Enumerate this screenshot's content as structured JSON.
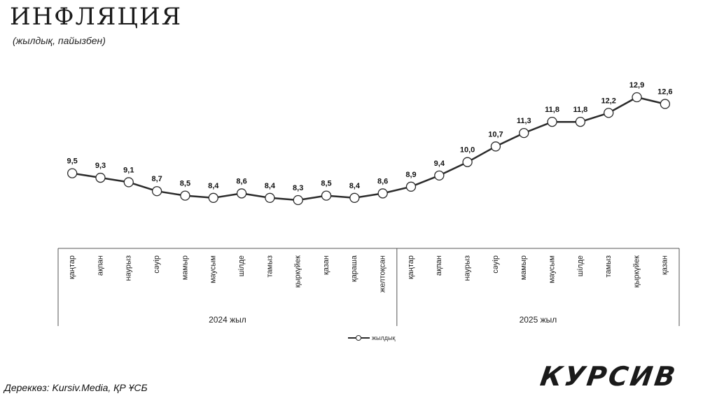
{
  "header": {
    "title": "ИНФЛЯЦИЯ",
    "subtitle": "(жылдық, пайызбен)"
  },
  "footer": {
    "source": "Дереккөз: Kursiv.Media, ҚР ҰСБ",
    "brand": "КУРСИВ"
  },
  "colors": {
    "line": "#2b2b2b",
    "marker_fill": "#ffffff",
    "axis": "#555555"
  },
  "chart_data": {
    "type": "line",
    "title": "ИНФЛЯЦИЯ",
    "subtitle": "(жылдық, пайызбен)",
    "categories": [
      "қаңтар",
      "ақпан",
      "наурыз",
      "сәуір",
      "мамыр",
      "маусым",
      "шілде",
      "тамыз",
      "қыркүйек",
      "қазан",
      "қараша",
      "желтоқсан",
      "қаңтар",
      "ақпан",
      "наурыз",
      "сәуір",
      "мамыр",
      "маусым",
      "шілде",
      "тамыз",
      "қыркүйек",
      "қазан"
    ],
    "groups": [
      {
        "label": "2024 жыл",
        "count": 12
      },
      {
        "label": "2025 жыл",
        "count": 10
      }
    ],
    "series": [
      {
        "name": "жылдық",
        "values": [
          9.5,
          9.3,
          9.1,
          8.7,
          8.5,
          8.4,
          8.6,
          8.4,
          8.3,
          8.5,
          8.4,
          8.6,
          8.9,
          9.4,
          10.0,
          10.7,
          11.3,
          11.8,
          11.8,
          12.2,
          12.9,
          12.6
        ],
        "labels": [
          "9,5",
          "9,3",
          "9,1",
          "8,7",
          "8,5",
          "8,4",
          "8,6",
          "8,4",
          "8,3",
          "8,5",
          "8,4",
          "8,6",
          "8,9",
          "9,4",
          "10,0",
          "10,7",
          "11,3",
          "11,8",
          "11,8",
          "12,2",
          "12,9",
          "12,6"
        ]
      }
    ],
    "legend": "bottom-center",
    "grid": false
  }
}
